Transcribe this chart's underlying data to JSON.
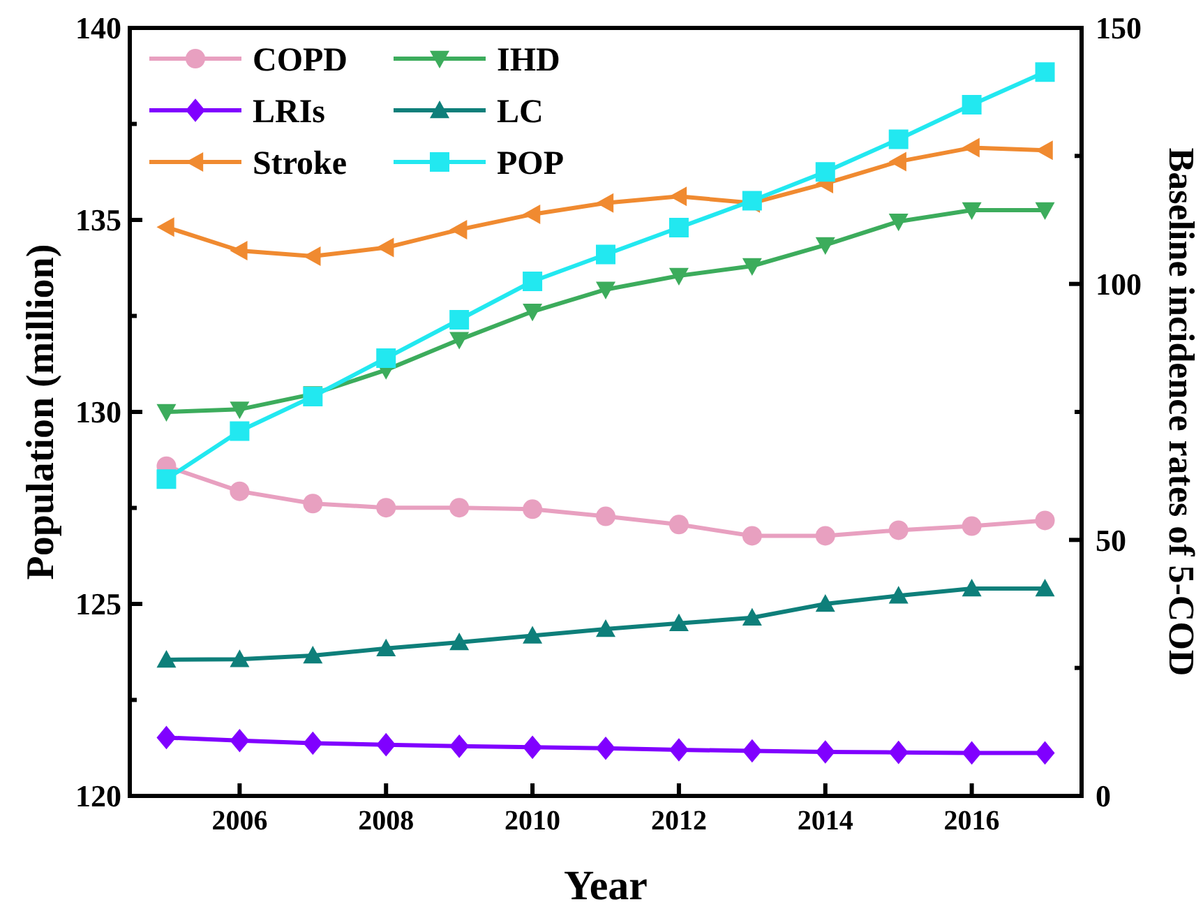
{
  "chart_data": {
    "type": "line",
    "xlabel": "Year",
    "ylabel": "Population (million)",
    "y2label": "Baseline incidence rates of 5-COD",
    "x": [
      2005,
      2006,
      2007,
      2008,
      2009,
      2010,
      2011,
      2012,
      2013,
      2014,
      2015,
      2016,
      2017
    ],
    "xlim": [
      2004.5,
      2017.5
    ],
    "xticks": [
      2006,
      2008,
      2010,
      2012,
      2014,
      2016
    ],
    "ylim": [
      120,
      140
    ],
    "yticks": [
      120,
      {
        "value": 122.5,
        "label": null
      },
      125,
      {
        "value": 127.5,
        "label": null
      },
      130,
      {
        "value": 132.5,
        "label": null
      },
      135,
      {
        "value": 137.5,
        "label": null
      },
      140
    ],
    "y2lim": [
      0,
      150
    ],
    "y2ticks": [
      0,
      {
        "value": 25,
        "label": null
      },
      50,
      {
        "value": 75,
        "label": null
      },
      100,
      {
        "value": 125,
        "label": null
      },
      150
    ],
    "legend": "top left",
    "grid": false,
    "line_style": "solid",
    "series": [
      {
        "name": "COPD",
        "color": "#e8a0c0",
        "marker": "circle",
        "axis": "y2",
        "values": [
          64.4,
          59.5,
          57.1,
          56.3,
          56.3,
          56.0,
          54.6,
          53.0,
          50.8,
          50.8,
          51.9,
          52.7,
          53.8
        ]
      },
      {
        "name": "IHD",
        "color": "#3cac5c",
        "marker": "triangle-down",
        "axis": "y2",
        "values": [
          75.0,
          75.5,
          78.5,
          83.2,
          89.1,
          94.6,
          98.9,
          101.6,
          103.5,
          107.6,
          112.2,
          114.4,
          114.4
        ]
      },
      {
        "name": "LRIs",
        "color": "#8000ff",
        "marker": "diamond",
        "axis": "y2",
        "values": [
          11.4,
          10.8,
          10.3,
          10.0,
          9.7,
          9.5,
          9.3,
          9.0,
          8.8,
          8.6,
          8.5,
          8.4,
          8.4
        ]
      },
      {
        "name": "LC",
        "color": "#0e7f7a",
        "marker": "triangle",
        "axis": "y2",
        "values": [
          26.6,
          26.7,
          27.4,
          28.8,
          30.0,
          31.3,
          32.6,
          33.7,
          34.8,
          37.5,
          39.1,
          40.5,
          40.5
        ]
      },
      {
        "name": "Stroke",
        "color": "#f08a30",
        "marker": "triangle-left",
        "axis": "y2",
        "values": [
          111.1,
          106.5,
          105.4,
          107.1,
          110.6,
          113.6,
          115.8,
          117.1,
          115.8,
          119.6,
          123.9,
          126.6,
          126.1
        ]
      },
      {
        "name": "POP",
        "color": "#22e8f0",
        "marker": "square",
        "values": [
          128.25,
          129.5,
          130.4,
          131.4,
          132.4,
          133.4,
          134.1,
          134.8,
          135.5,
          136.25,
          137.1,
          138.0,
          138.85
        ]
      }
    ]
  }
}
